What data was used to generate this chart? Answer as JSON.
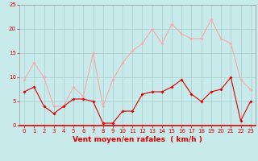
{
  "x": [
    0,
    1,
    2,
    3,
    4,
    5,
    6,
    7,
    8,
    9,
    10,
    11,
    12,
    13,
    14,
    15,
    16,
    17,
    18,
    19,
    20,
    21,
    22,
    23
  ],
  "y_moyen": [
    7,
    8,
    4,
    2.5,
    4,
    5.5,
    5.5,
    5,
    0.5,
    0.5,
    3,
    3,
    6.5,
    7,
    7,
    8,
    9.5,
    6.5,
    5,
    7,
    7.5,
    10,
    1,
    5
  ],
  "y_rafales": [
    9.5,
    13,
    10,
    4,
    4,
    8,
    6,
    15,
    4,
    9.5,
    13,
    15.5,
    17,
    20,
    17,
    21,
    19,
    18,
    18,
    22,
    18,
    17,
    9.5,
    7.5
  ],
  "color_moyen": "#dd0000",
  "color_rafales": "#f4aaaa",
  "bg_color": "#c8eaea",
  "grid_color": "#a8cccc",
  "xlabel": "Vent moyen/en rafales  ( km/h )",
  "ylim": [
    0,
    25
  ],
  "xlim": [
    -0.5,
    23.5
  ],
  "yticks": [
    0,
    5,
    10,
    15,
    20,
    25
  ],
  "xticks": [
    0,
    1,
    2,
    3,
    4,
    5,
    6,
    7,
    8,
    9,
    10,
    11,
    12,
    13,
    14,
    15,
    16,
    17,
    18,
    19,
    20,
    21,
    22,
    23
  ],
  "tick_fontsize": 5,
  "xlabel_fontsize": 6.5,
  "marker_size": 2.0,
  "line_width": 0.8
}
